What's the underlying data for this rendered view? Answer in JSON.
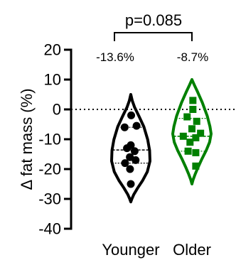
{
  "chart_data": {
    "type": "violin",
    "title": "",
    "xlabel": "",
    "ylabel": "Δ fat mass (%)",
    "ylim": [
      -40,
      20
    ],
    "yticks": [
      20,
      10,
      0,
      -10,
      -20,
      -30,
      -40
    ],
    "reference_line_y": 0,
    "comparison": {
      "label": "p=0.085",
      "groups": [
        "Younger",
        "Older"
      ]
    },
    "categories": [
      "Younger",
      "Older"
    ],
    "series": [
      {
        "category": "Younger",
        "color": "#000000",
        "marker": "circle",
        "annotation": "-13.6%",
        "violin_range": [
          -31,
          5
        ],
        "quartiles": [
          -18,
          -13.6,
          -6
        ],
        "points": [
          {
            "dx": 0.02,
            "y": -2
          },
          {
            "dx": 0.3,
            "y": -5.5
          },
          {
            "dx": -0.32,
            "y": -6
          },
          {
            "dx": 0.0,
            "y": -12
          },
          {
            "dx": -0.2,
            "y": -13
          },
          {
            "dx": 0.2,
            "y": -14
          },
          {
            "dx": -0.05,
            "y": -16
          },
          {
            "dx": 0.25,
            "y": -17
          },
          {
            "dx": -0.3,
            "y": -18
          },
          {
            "dx": -0.04,
            "y": -20
          },
          {
            "dx": 0.0,
            "y": -25
          }
        ]
      },
      {
        "category": "Older",
        "color": "#008000",
        "marker": "square",
        "annotation": "-8.7%",
        "violin_range": [
          -25,
          10
        ],
        "quartiles": [
          -14,
          -9,
          -3
        ],
        "points": [
          {
            "dx": 0.05,
            "y": 3
          },
          {
            "dx": 0.05,
            "y": 0
          },
          {
            "dx": -0.25,
            "y": -2.5
          },
          {
            "dx": 0.25,
            "y": -4
          },
          {
            "dx": 0.0,
            "y": -6.5
          },
          {
            "dx": 0.45,
            "y": -8
          },
          {
            "dx": -0.45,
            "y": -9
          },
          {
            "dx": 0.2,
            "y": -9.5
          },
          {
            "dx": -0.1,
            "y": -11
          },
          {
            "dx": -0.2,
            "y": -14
          },
          {
            "dx": 0.2,
            "y": -14.5
          },
          {
            "dx": 0.2,
            "y": -19
          }
        ]
      }
    ]
  }
}
